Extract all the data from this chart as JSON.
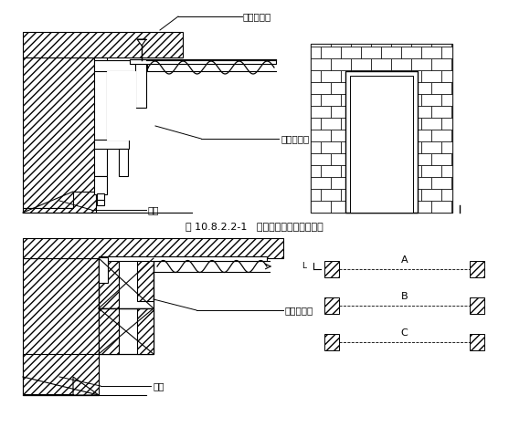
{
  "title": "图 10.8.2.2-1   钢木质防火门结构安装图",
  "label_dingla": "打钉拉铁皮",
  "label_gangfang": "钢防火门框",
  "label_qiangti1": "墙体",
  "label_fanghuomu": "防火木门框",
  "label_qiangti2": "墙体",
  "label_A": "A",
  "label_B": "B",
  "label_C": "C",
  "bg_color": "#ffffff",
  "line_color": "#000000"
}
